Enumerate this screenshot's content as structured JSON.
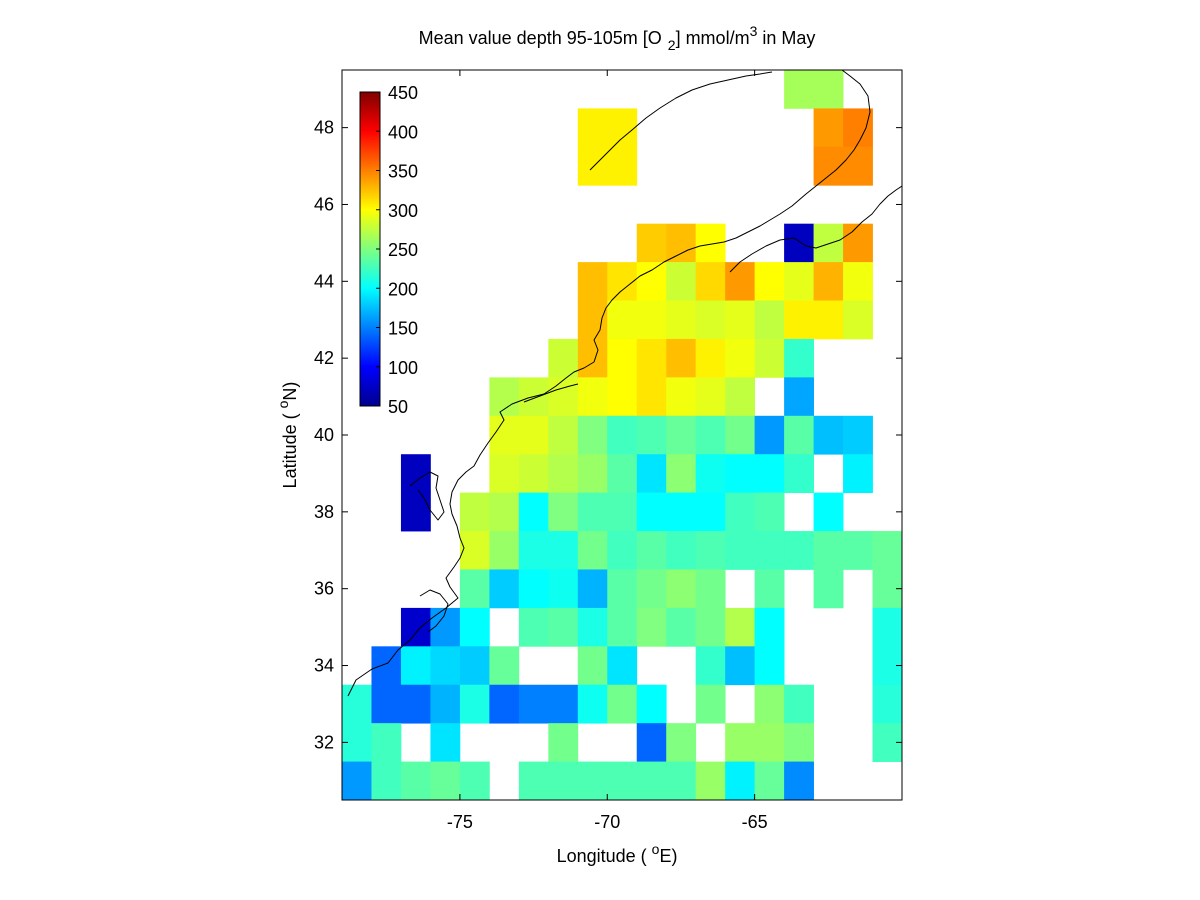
{
  "chart_data": {
    "type": "heatmap",
    "title": {
      "prefix": "Mean value depth 95-105m [O",
      "sub": "2",
      "middle": "] mmol/m",
      "sup": "3",
      "suffix": " in May"
    },
    "xlabel": {
      "prefix": "Longitude ( ",
      "sup": "o",
      "suffix": "E)"
    },
    "ylabel": {
      "prefix": "Latitude ( ",
      "sup": "o",
      "suffix": "N)"
    },
    "xlim": [
      -79,
      -60
    ],
    "ylim": [
      30.5,
      49.5
    ],
    "xticks": [
      -75,
      -70,
      -65
    ],
    "yticks": [
      32,
      34,
      36,
      38,
      40,
      42,
      44,
      46,
      48
    ],
    "colormap": "jet",
    "colorbar": {
      "range": [
        50,
        450
      ],
      "ticks": [
        450,
        400,
        350,
        300,
        250,
        200,
        150,
        100,
        50
      ],
      "placement": "inside top-left"
    },
    "cell_size_deg": 1,
    "lon_start": -79,
    "lat_start": 30.5,
    "rows": [
      {
        "lat": 49,
        "values": [
          null,
          null,
          null,
          null,
          null,
          null,
          null,
          null,
          null,
          null,
          null,
          null,
          null,
          null,
          null,
          265,
          265,
          null,
          null
        ]
      },
      {
        "lat": 48,
        "values": [
          null,
          null,
          null,
          null,
          null,
          null,
          null,
          null,
          305,
          305,
          null,
          null,
          null,
          null,
          null,
          null,
          340,
          350,
          null
        ]
      },
      {
        "lat": 47,
        "values": [
          null,
          null,
          null,
          null,
          null,
          null,
          null,
          null,
          305,
          305,
          null,
          null,
          null,
          null,
          null,
          null,
          345,
          345,
          null
        ]
      },
      {
        "lat": 46,
        "values": [
          null,
          null,
          null,
          null,
          null,
          null,
          null,
          null,
          null,
          null,
          null,
          null,
          null,
          null,
          null,
          null,
          null,
          null,
          null
        ]
      },
      {
        "lat": 45,
        "values": [
          null,
          null,
          null,
          null,
          null,
          null,
          null,
          null,
          null,
          null,
          320,
          325,
          300,
          null,
          null,
          75,
          275,
          340,
          null
        ]
      },
      {
        "lat": 44,
        "values": [
          null,
          null,
          null,
          null,
          null,
          null,
          null,
          null,
          325,
          310,
          300,
          280,
          315,
          340,
          300,
          290,
          330,
          295,
          null
        ]
      },
      {
        "lat": 43,
        "values": [
          null,
          null,
          null,
          null,
          null,
          null,
          null,
          null,
          325,
          295,
          295,
          290,
          285,
          290,
          275,
          305,
          305,
          285,
          null
        ]
      },
      {
        "lat": 42,
        "values": [
          null,
          null,
          null,
          null,
          null,
          null,
          null,
          280,
          325,
          300,
          310,
          325,
          305,
          295,
          280,
          220,
          null,
          null,
          null
        ]
      },
      {
        "lat": 41,
        "values": [
          null,
          null,
          null,
          null,
          null,
          270,
          280,
          285,
          295,
          300,
          310,
          295,
          290,
          275,
          null,
          165,
          null,
          null,
          null
        ]
      },
      {
        "lat": 40,
        "values": [
          null,
          null,
          null,
          null,
          null,
          290,
          290,
          275,
          250,
          225,
          230,
          240,
          230,
          245,
          160,
          235,
          175,
          180,
          null
        ]
      },
      {
        "lat": 39,
        "values": [
          null,
          null,
          75,
          null,
          null,
          285,
          280,
          270,
          260,
          235,
          190,
          255,
          205,
          200,
          200,
          220,
          null,
          195,
          null
        ]
      },
      {
        "lat": 38,
        "values": [
          null,
          null,
          75,
          null,
          275,
          270,
          200,
          250,
          230,
          230,
          200,
          200,
          200,
          225,
          230,
          null,
          200,
          null,
          null
        ]
      },
      {
        "lat": 37,
        "values": [
          null,
          null,
          null,
          null,
          285,
          260,
          210,
          210,
          245,
          225,
          235,
          225,
          230,
          225,
          225,
          225,
          235,
          235,
          240
        ]
      },
      {
        "lat": 36,
        "values": [
          null,
          null,
          null,
          null,
          235,
          180,
          200,
          205,
          170,
          235,
          245,
          255,
          245,
          null,
          235,
          null,
          235,
          null,
          240
        ]
      },
      {
        "lat": 35,
        "values": [
          null,
          null,
          80,
          160,
          200,
          null,
          230,
          235,
          210,
          235,
          250,
          235,
          245,
          270,
          200,
          null,
          null,
          null,
          210
        ]
      },
      {
        "lat": 34,
        "values": [
          null,
          140,
          195,
          185,
          180,
          240,
          null,
          null,
          245,
          190,
          null,
          null,
          220,
          175,
          200,
          null,
          null,
          null,
          210
        ]
      },
      {
        "lat": 33,
        "values": [
          215,
          140,
          140,
          170,
          210,
          140,
          150,
          150,
          205,
          245,
          200,
          null,
          245,
          null,
          255,
          225,
          null,
          null,
          215
        ]
      },
      {
        "lat": 32,
        "values": [
          215,
          225,
          null,
          190,
          null,
          null,
          null,
          245,
          null,
          null,
          140,
          250,
          null,
          260,
          260,
          250,
          null,
          null,
          225
        ]
      },
      {
        "lat": 31,
        "values": [
          160,
          225,
          235,
          240,
          230,
          null,
          230,
          230,
          230,
          230,
          230,
          230,
          260,
          195,
          240,
          155,
          null,
          null,
          null
        ]
      }
    ]
  }
}
